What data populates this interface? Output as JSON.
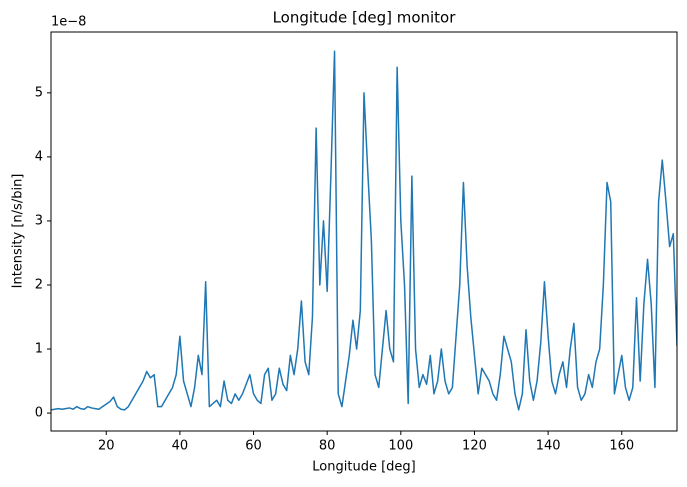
{
  "chart_data": {
    "type": "line",
    "title": "Longitude [deg] monitor",
    "x_label": "Longitude [deg]",
    "y_label": "Intensity [n/s/bin]",
    "y_offset_text": "1e−8",
    "x": [
      5,
      6,
      7,
      8,
      9,
      10,
      11,
      12,
      13,
      14,
      15,
      16,
      17,
      18,
      19,
      20,
      21,
      22,
      23,
      24,
      25,
      26,
      27,
      28,
      29,
      30,
      31,
      32,
      33,
      34,
      35,
      36,
      37,
      38,
      39,
      40,
      41,
      42,
      43,
      44,
      45,
      46,
      47,
      48,
      49,
      50,
      51,
      52,
      53,
      54,
      55,
      56,
      57,
      58,
      59,
      60,
      61,
      62,
      63,
      64,
      65,
      66,
      67,
      68,
      69,
      70,
      71,
      72,
      73,
      74,
      75,
      76,
      77,
      78,
      79,
      80,
      81,
      82,
      83,
      84,
      85,
      86,
      87,
      88,
      89,
      90,
      91,
      92,
      93,
      94,
      95,
      96,
      97,
      98,
      99,
      100,
      101,
      102,
      103,
      104,
      105,
      106,
      107,
      108,
      109,
      110,
      111,
      112,
      113,
      114,
      115,
      116,
      117,
      118,
      119,
      120,
      121,
      122,
      123,
      124,
      125,
      126,
      127,
      128,
      129,
      130,
      131,
      132,
      133,
      134,
      135,
      136,
      137,
      138,
      139,
      140,
      141,
      142,
      143,
      144,
      145,
      146,
      147,
      148,
      149,
      150,
      151,
      152,
      153,
      154,
      155,
      156,
      157,
      158,
      159,
      160,
      161,
      162,
      163,
      164,
      165,
      166,
      167,
      168,
      169,
      170,
      171,
      172,
      173,
      174,
      175
    ],
    "series": [
      {
        "color": "#1f77b4",
        "values": [
          0.05,
          0.06,
          0.07,
          0.06,
          0.07,
          0.08,
          0.06,
          0.1,
          0.07,
          0.06,
          0.1,
          0.08,
          0.07,
          0.06,
          0.1,
          0.14,
          0.18,
          0.25,
          0.1,
          0.06,
          0.05,
          0.1,
          0.2,
          0.3,
          0.4,
          0.5,
          0.65,
          0.55,
          0.6,
          0.1,
          0.1,
          0.2,
          0.3,
          0.4,
          0.6,
          1.2,
          0.5,
          0.3,
          0.1,
          0.4,
          0.9,
          0.6,
          2.05,
          0.1,
          0.15,
          0.2,
          0.1,
          0.5,
          0.2,
          0.15,
          0.3,
          0.2,
          0.3,
          0.45,
          0.6,
          0.3,
          0.2,
          0.15,
          0.6,
          0.7,
          0.2,
          0.3,
          0.7,
          0.45,
          0.35,
          0.9,
          0.6,
          1.0,
          1.75,
          0.8,
          0.6,
          1.5,
          4.45,
          2.0,
          3.0,
          1.9,
          3.7,
          5.65,
          0.3,
          0.1,
          0.5,
          0.9,
          1.45,
          1.0,
          1.6,
          5.0,
          3.8,
          2.7,
          0.6,
          0.4,
          1.0,
          1.6,
          1.0,
          0.8,
          5.4,
          3.0,
          2.0,
          0.15,
          3.7,
          1.0,
          0.4,
          0.6,
          0.45,
          0.9,
          0.3,
          0.5,
          1.0,
          0.5,
          0.3,
          0.4,
          1.2,
          2.0,
          3.6,
          2.3,
          1.5,
          0.9,
          0.3,
          0.7,
          0.6,
          0.5,
          0.3,
          0.2,
          0.6,
          1.2,
          1.0,
          0.8,
          0.3,
          0.05,
          0.3,
          1.3,
          0.5,
          0.2,
          0.5,
          1.1,
          2.05,
          1.2,
          0.5,
          0.3,
          0.6,
          0.8,
          0.4,
          1.0,
          1.4,
          0.4,
          0.2,
          0.3,
          0.6,
          0.4,
          0.8,
          1.0,
          2.0,
          3.6,
          3.3,
          0.3,
          0.6,
          0.9,
          0.4,
          0.2,
          0.4,
          1.8,
          0.5,
          1.7,
          2.4,
          1.7,
          0.4,
          3.3,
          3.95,
          3.3,
          2.6,
          2.8,
          1.05
        ]
      }
    ],
    "xlim": [
      5,
      175
    ],
    "xticks": [
      20,
      40,
      60,
      80,
      100,
      120,
      140,
      160
    ],
    "ylim": [
      -0.28,
      5.95
    ],
    "yticks": [
      0,
      1,
      2,
      3,
      4,
      5
    ],
    "grid": false
  }
}
